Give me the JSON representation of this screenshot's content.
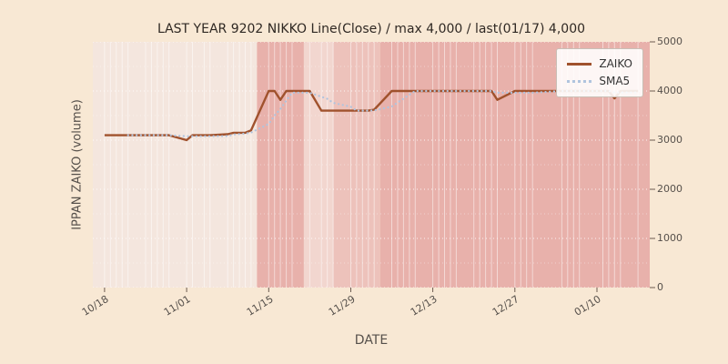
{
  "chart_data": {
    "type": "line",
    "title": "LAST YEAR 9202 NIKKO Line(Close) / max 4,000 / last(01/17) 4,000",
    "xlabel": "DATE",
    "ylabel": "IPPAN ZAIKO (volume)",
    "ylim": [
      0,
      5000
    ],
    "yticks": [
      0,
      1000,
      2000,
      3000,
      4000,
      5000
    ],
    "xticks": [
      "10/18",
      "11/01",
      "11/15",
      "11/29",
      "12/13",
      "12/27",
      "01/10"
    ],
    "xlim": [
      "10/16",
      "01/19"
    ],
    "grid": true,
    "legend_position": "upper right",
    "max_value": 4000,
    "last_date": "01/17",
    "last_value": 4000,
    "series": [
      {
        "name": "ZAIKO",
        "style": "solid",
        "color": "#a0522d",
        "dates": [
          "10/18",
          "10/19",
          "10/20",
          "10/21",
          "10/22",
          "10/25",
          "10/26",
          "10/27",
          "10/28",
          "10/29",
          "11/01",
          "11/02",
          "11/04",
          "11/05",
          "11/08",
          "11/09",
          "11/10",
          "11/11",
          "11/12",
          "11/15",
          "11/16",
          "11/17",
          "11/18",
          "11/19",
          "11/22",
          "11/24",
          "11/25",
          "11/26",
          "11/29",
          "11/30",
          "12/01",
          "12/02",
          "12/03",
          "12/06",
          "12/07",
          "12/08",
          "12/09",
          "12/10",
          "12/13",
          "12/14",
          "12/15",
          "12/16",
          "12/17",
          "12/20",
          "12/21",
          "12/22",
          "12/23",
          "12/24",
          "12/27",
          "12/28",
          "12/29",
          "12/30",
          "01/04",
          "01/05",
          "01/06",
          "01/07",
          "01/11",
          "01/12",
          "01/13",
          "01/14",
          "01/17"
        ],
        "values": [
          3100,
          3100,
          3100,
          3100,
          3100,
          3100,
          3100,
          3100,
          3100,
          3100,
          3000,
          3100,
          3100,
          3100,
          3120,
          3150,
          3150,
          3150,
          3200,
          4000,
          4000,
          3820,
          4000,
          4000,
          4000,
          3600,
          3600,
          3600,
          3600,
          3600,
          3600,
          3600,
          3620,
          4000,
          4000,
          4000,
          4000,
          4000,
          4000,
          4000,
          4000,
          4000,
          4000,
          4000,
          4000,
          4000,
          4000,
          3820,
          4000,
          4000,
          4000,
          4000,
          4000,
          4000,
          4000,
          4000,
          4000,
          4000,
          3850,
          4000,
          4000
        ]
      },
      {
        "name": "SMA5",
        "style": "dotted",
        "color": "#b0c4de",
        "derived_from": "ZAIKO",
        "window": 5
      }
    ],
    "bands": [
      {
        "from": "10/16",
        "to": "11/13",
        "color": "#f4e6de"
      },
      {
        "from": "11/13",
        "to": "11/21",
        "color": "#e8b1ab"
      },
      {
        "from": "11/21",
        "to": "11/26",
        "color": "#f2d6cf"
      },
      {
        "from": "11/26",
        "to": "12/04",
        "color": "#edc2bb"
      },
      {
        "from": "12/04",
        "to": "01/19",
        "color": "#e8b1ab"
      }
    ]
  }
}
